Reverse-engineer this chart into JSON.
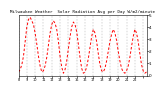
{
  "title": "Milwaukee Weather  Solar Radiation Avg per Day W/m2/minute",
  "line_color": "#ff0000",
  "bg_color": "#ffffff",
  "grid_color": "#aaaaaa",
  "ylim": [
    0,
    5
  ],
  "values": [
    0.3,
    0.5,
    0.9,
    1.6,
    2.8,
    4.0,
    4.6,
    4.8,
    4.5,
    4.2,
    3.5,
    2.6,
    1.6,
    0.8,
    0.3,
    0.4,
    0.8,
    1.5,
    2.5,
    3.5,
    4.2,
    4.5,
    4.3,
    3.8,
    2.8,
    1.6,
    0.7,
    0.2,
    0.5,
    1.2,
    2.2,
    3.2,
    4.0,
    4.4,
    4.2,
    3.6,
    2.6,
    1.5,
    0.6,
    0.2,
    0.3,
    0.7,
    1.4,
    2.3,
    3.2,
    3.8,
    3.5,
    2.8,
    1.8,
    0.9,
    0.4,
    0.3,
    0.6,
    1.2,
    2.0,
    2.8,
    3.4,
    3.8,
    3.5,
    2.9,
    2.0,
    1.2,
    0.6,
    0.3,
    0.2,
    0.4,
    0.8,
    1.5,
    2.4,
    3.2,
    3.8,
    3.5,
    2.8,
    1.8,
    0.9,
    0.4,
    0.2,
    0.3
  ],
  "x_tick_positions": [
    0,
    5,
    10,
    15,
    20,
    25,
    30,
    35,
    40,
    45,
    50,
    55,
    60,
    65,
    70,
    75
  ],
  "x_tick_labels": [
    "8",
    "9",
    "10",
    "11",
    "12",
    "13",
    "14",
    "15",
    "16",
    "17",
    "18",
    "19",
    "20",
    "21",
    "22",
    ""
  ],
  "y_tick_labels": [
    "5",
    "4",
    "3",
    "2",
    "1",
    "0"
  ]
}
